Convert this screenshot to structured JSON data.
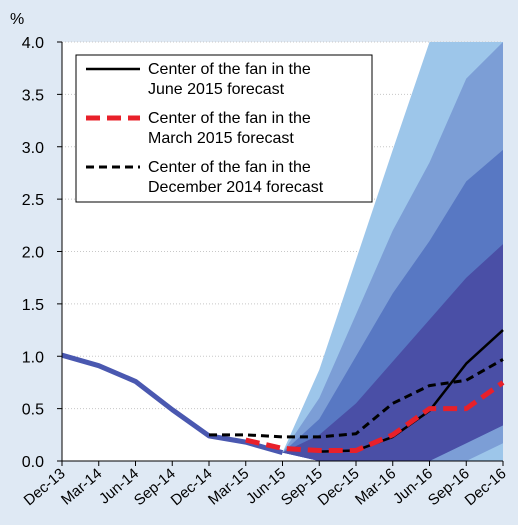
{
  "chart_data": {
    "type": "line",
    "y_unit": "%",
    "categories": [
      "Dec-13",
      "Mar-14",
      "Jun-14",
      "Sep-14",
      "Dec-14",
      "Mar-15",
      "Jun-15",
      "Sep-15",
      "Dec-15",
      "Mar-16",
      "Jun-16",
      "Sep-16",
      "Dec-16"
    ],
    "ylim": [
      0,
      4
    ],
    "yticks": [
      {
        "value": 0,
        "label": "0.0"
      },
      0.5,
      {
        "value": 1,
        "label": "1.0"
      },
      1.5,
      {
        "value": 2,
        "label": "2.0"
      },
      2.5,
      {
        "value": 3,
        "label": "3.0"
      },
      3.5,
      {
        "value": 4,
        "label": "4.0"
      }
    ],
    "grid": true,
    "legend": "upper left",
    "fan": [
      {
        "color": "#9dc6ea",
        "upper": [
          null,
          null,
          null,
          null,
          null,
          null,
          0.08,
          0.87,
          1.92,
          2.97,
          4.0,
          4.0,
          4.0
        ],
        "lower": [
          null,
          null,
          null,
          null,
          null,
          null,
          0.08,
          0,
          0,
          0,
          0,
          0,
          0
        ]
      },
      {
        "color": "#7c9ed6",
        "upper": [
          null,
          null,
          null,
          null,
          null,
          null,
          0.08,
          0.6,
          1.4,
          2.2,
          2.85,
          3.65,
          4.0
        ],
        "lower": [
          null,
          null,
          null,
          null,
          null,
          null,
          0.08,
          0,
          0,
          0,
          0,
          0,
          0.17
        ]
      },
      {
        "color": "#5878c3",
        "upper": [
          null,
          null,
          null,
          null,
          null,
          null,
          0.08,
          0.4,
          1.0,
          1.6,
          2.1,
          2.67,
          2.97
        ],
        "lower": [
          null,
          null,
          null,
          null,
          null,
          null,
          0.08,
          0,
          0,
          0,
          0,
          0.17,
          0.34
        ]
      },
      {
        "color": "#4a4fa6",
        "upper": [
          null,
          null,
          null,
          null,
          null,
          null,
          0.08,
          0.25,
          0.55,
          0.95,
          1.35,
          1.75,
          2.07
        ],
        "lower": [
          null,
          null,
          null,
          null,
          null,
          null,
          0.08,
          0,
          0,
          0,
          0,
          0.17,
          0.34
        ]
      }
    ],
    "series": [
      {
        "color": "#4a58b0",
        "width": 5,
        "dash": "none",
        "values": [
          1.01,
          0.91,
          0.76,
          0.49,
          0.24,
          0.18,
          0.08,
          null,
          null,
          null,
          null,
          null,
          null
        ]
      },
      {
        "name": "Center of the fan in the\nJune 2015 forecast",
        "color": "#000000",
        "width": 2.5,
        "dash": "none",
        "values": [
          null,
          null,
          null,
          null,
          null,
          null,
          null,
          0.09,
          0.1,
          0.23,
          0.48,
          0.93,
          1.25
        ]
      },
      {
        "name": "Center of the fan in the\nMarch 2015 forecast",
        "color": "#e8202a",
        "width": 5,
        "dash": "14 7",
        "values": [
          null,
          null,
          null,
          null,
          null,
          0.2,
          0.12,
          0.1,
          0.1,
          0.25,
          0.5,
          0.5,
          0.75
        ]
      },
      {
        "name": "Center of the fan in the\nDecember 2014 forecast",
        "color": "#000000",
        "width": 3,
        "dash": "8 5",
        "values": [
          null,
          null,
          null,
          null,
          0.25,
          0.25,
          0.23,
          0.23,
          0.26,
          0.55,
          0.72,
          0.77,
          0.97
        ]
      }
    ]
  }
}
